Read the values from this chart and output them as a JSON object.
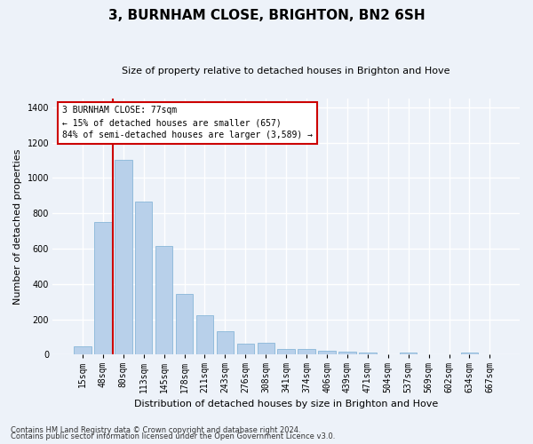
{
  "title": "3, BURNHAM CLOSE, BRIGHTON, BN2 6SH",
  "subtitle": "Size of property relative to detached houses in Brighton and Hove",
  "xlabel": "Distribution of detached houses by size in Brighton and Hove",
  "ylabel": "Number of detached properties",
  "footnote1": "Contains HM Land Registry data © Crown copyright and database right 2024.",
  "footnote2": "Contains public sector information licensed under the Open Government Licence v3.0.",
  "annotation_line1": "3 BURNHAM CLOSE: 77sqm",
  "annotation_line2": "← 15% of detached houses are smaller (657)",
  "annotation_line3": "84% of semi-detached houses are larger (3,589) →",
  "bar_color": "#b8d0ea",
  "bar_edge_color": "#7aaed4",
  "vline_color": "#cc0000",
  "categories": [
    "15sqm",
    "48sqm",
    "80sqm",
    "113sqm",
    "145sqm",
    "178sqm",
    "211sqm",
    "243sqm",
    "276sqm",
    "308sqm",
    "341sqm",
    "374sqm",
    "406sqm",
    "439sqm",
    "471sqm",
    "504sqm",
    "537sqm",
    "569sqm",
    "602sqm",
    "634sqm",
    "667sqm"
  ],
  "values": [
    50,
    750,
    1100,
    865,
    615,
    345,
    225,
    135,
    65,
    70,
    32,
    30,
    22,
    15,
    10,
    0,
    12,
    0,
    0,
    12,
    0
  ],
  "vline_pos": 1.5,
  "ylim": [
    0,
    1450
  ],
  "yticks": [
    0,
    200,
    400,
    600,
    800,
    1000,
    1200,
    1400
  ],
  "background_color": "#edf2f9",
  "grid_color": "#ffffff",
  "annotation_box_color": "#ffffff",
  "annotation_box_edge": "#cc0000",
  "title_fontsize": 11,
  "subtitle_fontsize": 8,
  "ylabel_fontsize": 8,
  "xlabel_fontsize": 8,
  "tick_fontsize": 7,
  "footnote_fontsize": 6
}
